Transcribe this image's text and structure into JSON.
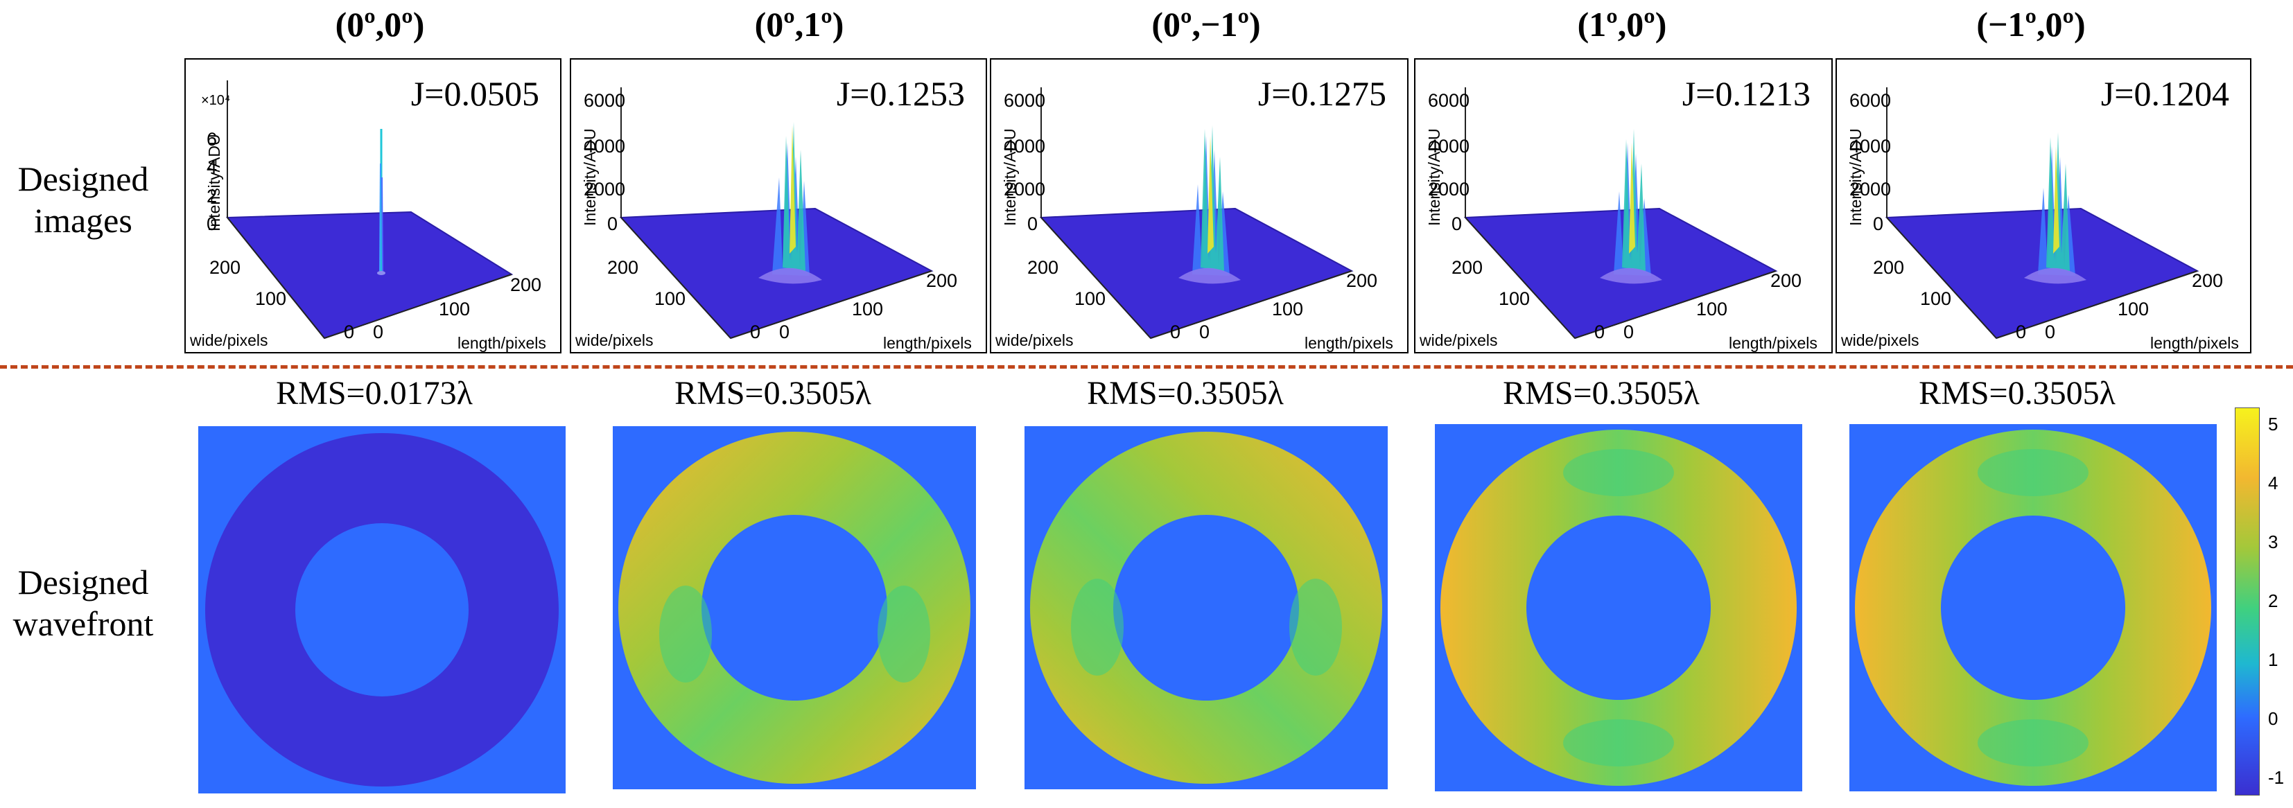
{
  "row_labels": {
    "images_line1": "Designed",
    "images_line2": "images",
    "wavefront_line1": "Designed",
    "wavefront_line2": "wavefront"
  },
  "columns": [
    {
      "angle": "(0º,0º)",
      "j": "J=0.0505",
      "rms": "RMS=0.0173λ",
      "z_ticks": [
        "6",
        "4",
        "2",
        "0"
      ],
      "exponent_label": "×10⁴"
    },
    {
      "angle": "(0º,1º)",
      "j": "J=0.1253",
      "rms": "RMS=0.3505λ",
      "z_ticks": [
        "6000",
        "4000",
        "2000",
        "0"
      ]
    },
    {
      "angle": "(0º,−1º)",
      "j": "J=0.1275",
      "rms": "RMS=0.3505λ",
      "z_ticks": [
        "6000",
        "4000",
        "2000",
        "0"
      ]
    },
    {
      "angle": "(1º,0º)",
      "j": "J=0.1213",
      "rms": "RMS=0.3505λ",
      "z_ticks": [
        "6000",
        "4000",
        "2000",
        "0"
      ]
    },
    {
      "angle": "(−1º,0º)",
      "j": "J=0.1204",
      "rms": "RMS=0.3505λ",
      "z_ticks": [
        "6000",
        "4000",
        "2000",
        "0"
      ]
    }
  ],
  "axes": {
    "zlabel": "Intensity/ADU",
    "wide_label": "wide/pixels",
    "length_label": "length/pixels",
    "wide_ticks": [
      "200",
      "100",
      "0"
    ],
    "length_ticks": [
      "0",
      "100",
      "200"
    ]
  },
  "colorbar": {
    "ticks": [
      "5",
      "4",
      "3",
      "2",
      "1",
      "0",
      "-1"
    ],
    "min": -1.3,
    "max": 5.3
  },
  "colors": {
    "divider": "#c0461b",
    "surface_base": "#3d2bd6",
    "wavefront_background": "#2e6bff",
    "ring_flat": "#3b32d8",
    "ring_warm": "#f2b830",
    "ring_mid": "#a4c83a",
    "ring_cool": "#3fd080"
  }
}
